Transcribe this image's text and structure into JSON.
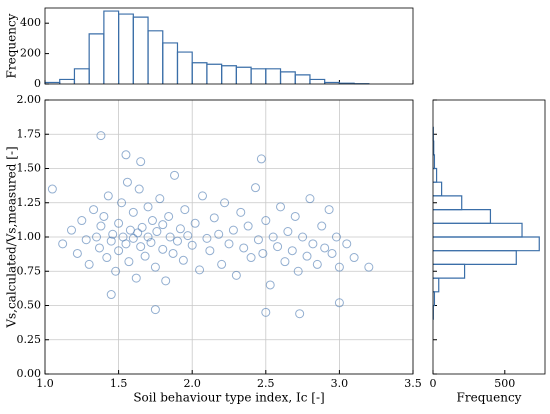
{
  "chart_data": [
    {
      "type": "scatter",
      "xlabel": "Soil behaviour type index, Ic [-]",
      "ylabel": "Vs,calculated/Vs,measured [-]",
      "color": "#4a78b0",
      "grid": true,
      "xlim": [
        1.0,
        3.5
      ],
      "xticks": [
        {
          "value": 1.0,
          "label": "1.0"
        },
        1.5,
        {
          "value": 2.0,
          "label": "2.0"
        },
        2.5,
        {
          "value": 3.0,
          "label": "3.0"
        },
        3.5
      ],
      "ylim": [
        0,
        2
      ],
      "yticks": [
        {
          "value": 0,
          "label": "0.00"
        },
        {
          "value": 0.25,
          "label": "0.25"
        },
        {
          "value": 0.5,
          "label": "0.50"
        },
        {
          "value": 0.75,
          "label": "0.75"
        },
        {
          "value": 1.0,
          "label": "1.00"
        },
        {
          "value": 1.25,
          "label": "1.25"
        },
        {
          "value": 1.5,
          "label": "1.50"
        },
        {
          "value": 1.75,
          "label": "1.75"
        },
        {
          "value": 2.0,
          "label": "2.00"
        }
      ],
      "x": [
        1.12,
        1.18,
        1.22,
        1.25,
        1.28,
        1.3,
        1.33,
        1.35,
        1.37,
        1.38,
        1.4,
        1.42,
        1.43,
        1.45,
        1.46,
        1.48,
        1.5,
        1.5,
        1.52,
        1.53,
        1.55,
        1.56,
        1.57,
        1.58,
        1.6,
        1.6,
        1.62,
        1.63,
        1.64,
        1.65,
        1.66,
        1.68,
        1.7,
        1.7,
        1.72,
        1.73,
        1.75,
        1.76,
        1.78,
        1.8,
        1.8,
        1.82,
        1.84,
        1.85,
        1.87,
        1.88,
        1.9,
        1.92,
        1.94,
        1.95,
        1.97,
        2.0,
        2.02,
        2.05,
        2.07,
        2.1,
        2.12,
        2.15,
        2.18,
        2.2,
        2.22,
        2.25,
        2.28,
        2.3,
        2.33,
        2.35,
        2.38,
        2.4,
        2.43,
        2.45,
        2.48,
        2.5,
        2.53,
        2.55,
        2.58,
        2.6,
        2.63,
        2.65,
        2.68,
        2.7,
        2.72,
        2.75,
        2.78,
        2.8,
        2.82,
        2.85,
        2.88,
        2.9,
        2.93,
        2.95,
        2.98,
        3.0,
        3.05,
        3.1,
        3.2,
        1.38,
        1.55,
        1.75,
        2.5,
        2.73,
        1.05,
        2.47,
        3.0,
        1.65,
        1.45
      ],
      "y": [
        0.95,
        1.05,
        0.88,
        1.12,
        0.98,
        0.8,
        1.2,
        1.0,
        0.92,
        1.08,
        1.15,
        0.85,
        1.3,
        0.97,
        1.02,
        0.75,
        1.1,
        0.9,
        1.25,
        1.0,
        0.95,
        1.4,
        0.82,
        1.05,
        0.99,
        1.18,
        0.7,
        1.03,
        1.35,
        0.93,
        1.07,
        0.86,
        1.0,
        1.22,
        0.96,
        1.12,
        0.78,
        1.04,
        1.28,
        0.91,
        1.09,
        0.68,
        1.15,
        1.0,
        0.88,
        1.45,
        0.97,
        1.06,
        0.83,
        1.2,
        1.01,
        0.94,
        1.1,
        0.76,
        1.3,
        0.99,
        0.9,
        1.14,
        1.02,
        0.8,
        1.25,
        0.95,
        1.05,
        0.72,
        1.18,
        0.92,
        1.08,
        0.85,
        1.36,
        0.98,
        0.88,
        1.12,
        0.65,
        1.0,
        0.93,
        1.22,
        0.82,
        1.04,
        0.9,
        1.15,
        0.75,
        1.0,
        0.86,
        1.28,
        0.95,
        0.8,
        1.08,
        0.92,
        1.2,
        0.88,
        1.0,
        0.78,
        0.95,
        0.85,
        0.78,
        1.74,
        1.6,
        0.47,
        0.45,
        0.44,
        1.35,
        1.57,
        0.52,
        1.55,
        0.58
      ]
    },
    {
      "type": "histogram",
      "ylabel": "Frequency",
      "color": "#3a6ea8",
      "xlim": [
        1.0,
        3.5
      ],
      "ylim": [
        0,
        500
      ],
      "yticks": [
        0,
        200,
        400
      ],
      "bins": [
        1.0,
        1.1,
        1.2,
        1.3,
        1.4,
        1.5,
        1.6,
        1.7,
        1.8,
        1.9,
        2.0,
        2.1,
        2.2,
        2.3,
        2.4,
        2.5,
        2.6,
        2.7,
        2.8,
        2.9,
        3.0,
        3.1,
        3.2
      ],
      "values": [
        10,
        30,
        100,
        330,
        480,
        460,
        440,
        350,
        270,
        210,
        140,
        130,
        120,
        110,
        100,
        100,
        80,
        60,
        30,
        10,
        5,
        2
      ]
    },
    {
      "type": "histogram-horizontal",
      "xlabel": "Frequency",
      "color": "#3a6ea8",
      "xlim": [
        0,
        780
      ],
      "xticks": [
        0,
        500
      ],
      "ylim": [
        0,
        2
      ],
      "bins": [
        0.4,
        0.5,
        0.6,
        0.7,
        0.8,
        0.9,
        1.0,
        1.1,
        1.2,
        1.3,
        1.4,
        1.5,
        1.6,
        1.7,
        1.8
      ],
      "values": [
        2,
        10,
        40,
        220,
        580,
        740,
        620,
        400,
        200,
        60,
        25,
        10,
        5,
        2
      ]
    }
  ]
}
